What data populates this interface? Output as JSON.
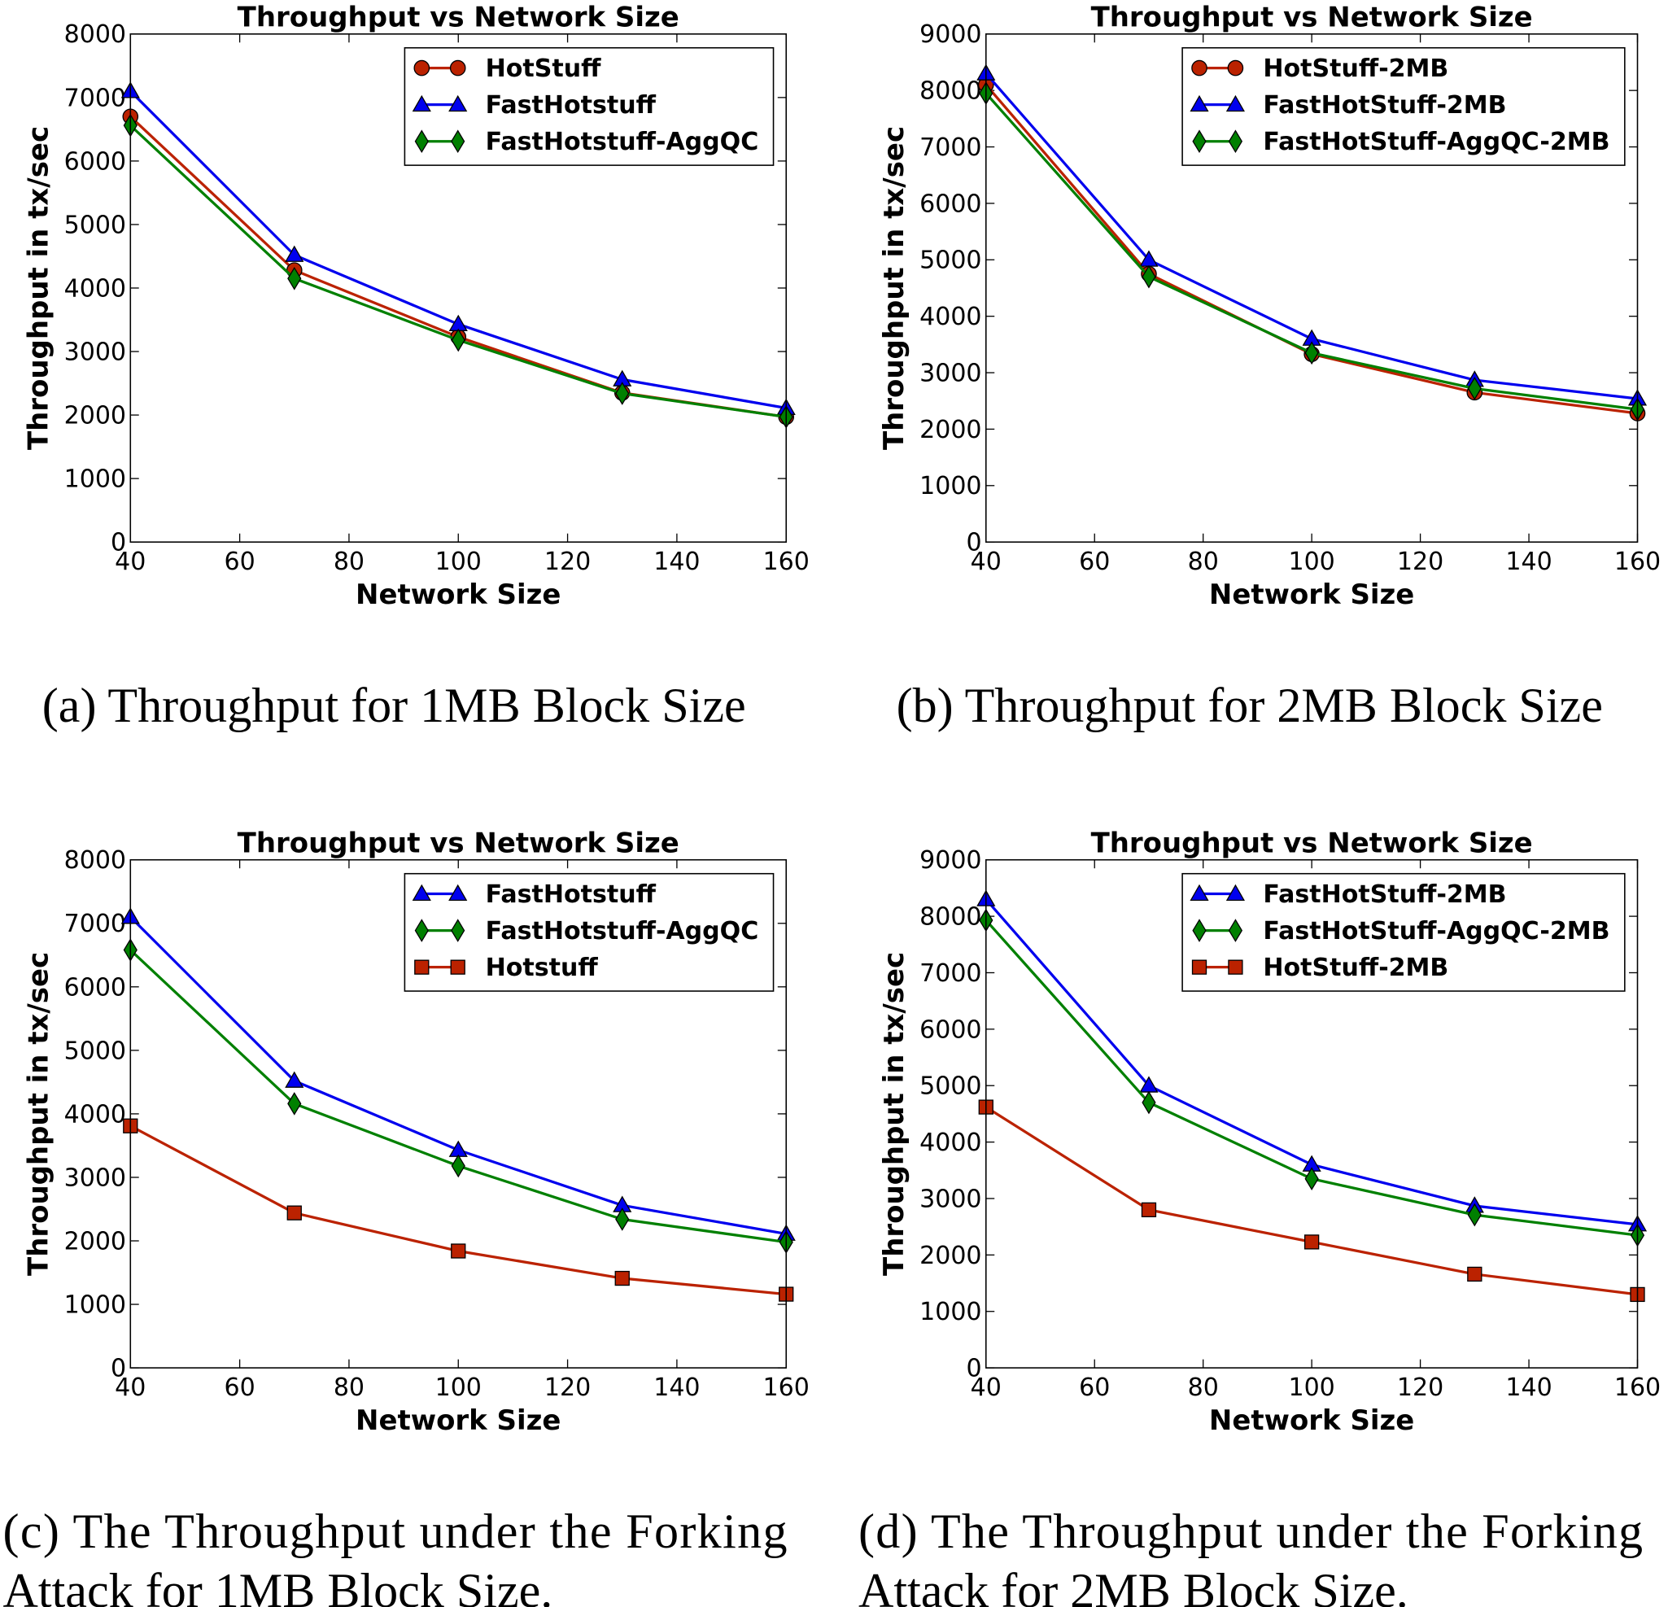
{
  "chart_data": [
    {
      "type": "line",
      "title": "Throughput vs Network Size",
      "x_label": "Network Size",
      "y_label": "Throughput in tx/sec",
      "caption": [
        "(a) Throughput for 1MB Block Size"
      ],
      "x": [
        40,
        70,
        100,
        130,
        160
      ],
      "xlim": [
        40,
        160
      ],
      "xticks": [
        40,
        60,
        80,
        100,
        120,
        140,
        160
      ],
      "ylim": [
        0,
        8000
      ],
      "yticks": [
        0,
        1000,
        2000,
        3000,
        4000,
        5000,
        6000,
        7000,
        8000
      ],
      "legend": "upper right",
      "series": [
        {
          "name": "HotStuff",
          "color": "#bb2200",
          "marker": "circle",
          "values": [
            6700,
            4280,
            3230,
            2350,
            1970
          ]
        },
        {
          "name": "FastHotstuff",
          "color": "#0000ee",
          "marker": "triangle",
          "values": [
            7100,
            4520,
            3430,
            2560,
            2110
          ]
        },
        {
          "name": "FastHotstuff-AggQC",
          "color": "#008000",
          "marker": "diamond",
          "values": [
            6560,
            4150,
            3180,
            2340,
            1970
          ]
        }
      ]
    },
    {
      "type": "line",
      "title": "Throughput vs Network Size",
      "x_label": "Network Size",
      "y_label": "Throughput in tx/sec",
      "caption": [
        "(b) Throughput for 2MB Block Size"
      ],
      "x": [
        40,
        70,
        100,
        130,
        160
      ],
      "xlim": [
        40,
        160
      ],
      "xticks": [
        40,
        60,
        80,
        100,
        120,
        140,
        160
      ],
      "ylim": [
        0,
        9000
      ],
      "yticks": [
        0,
        1000,
        2000,
        3000,
        4000,
        5000,
        6000,
        7000,
        8000,
        9000
      ],
      "legend": "upper right",
      "series": [
        {
          "name": "HotStuff-2MB",
          "color": "#bb2200",
          "marker": "circle",
          "values": [
            8100,
            4750,
            3330,
            2650,
            2280
          ]
        },
        {
          "name": "FastHotStuff-2MB",
          "color": "#0000ee",
          "marker": "triangle",
          "values": [
            8300,
            5000,
            3600,
            2870,
            2540
          ]
        },
        {
          "name": "FastHotStuff-AggQC-2MB",
          "color": "#008000",
          "marker": "diamond",
          "values": [
            7950,
            4700,
            3350,
            2720,
            2350
          ]
        }
      ]
    },
    {
      "type": "line",
      "title": "Throughput vs Network Size",
      "x_label": "Network Size",
      "y_label": "Throughput in tx/sec",
      "caption": [
        "(c) The Throughput under the Forking",
        "Attack for 1MB Block Size."
      ],
      "x": [
        40,
        70,
        100,
        130,
        160
      ],
      "xlim": [
        40,
        160
      ],
      "xticks": [
        40,
        60,
        80,
        100,
        120,
        140,
        160
      ],
      "ylim": [
        0,
        8000
      ],
      "yticks": [
        0,
        1000,
        2000,
        3000,
        4000,
        5000,
        6000,
        7000,
        8000
      ],
      "legend": "upper right",
      "series": [
        {
          "name": "FastHotstuff",
          "color": "#0000ee",
          "marker": "triangle",
          "values": [
            7100,
            4520,
            3430,
            2560,
            2110
          ]
        },
        {
          "name": "FastHotstuff-AggQC",
          "color": "#008000",
          "marker": "diamond",
          "values": [
            6580,
            4160,
            3180,
            2340,
            1980
          ]
        },
        {
          "name": "Hotstuff",
          "color": "#bb2200",
          "marker": "square",
          "values": [
            3810,
            2440,
            1840,
            1410,
            1160
          ]
        }
      ]
    },
    {
      "type": "line",
      "title": "Throughput vs Network Size",
      "x_label": "Network Size",
      "y_label": "Throughput in tx/sec",
      "caption": [
        "(d) The Throughput under the Forking",
        "Attack for 2MB Block Size."
      ],
      "x": [
        40,
        70,
        100,
        130,
        160
      ],
      "xlim": [
        40,
        160
      ],
      "xticks": [
        40,
        60,
        80,
        100,
        120,
        140,
        160
      ],
      "ylim": [
        0,
        9000
      ],
      "yticks": [
        0,
        1000,
        2000,
        3000,
        4000,
        5000,
        6000,
        7000,
        8000,
        9000
      ],
      "legend": "upper right",
      "series": [
        {
          "name": "FastHotStuff-2MB",
          "color": "#0000ee",
          "marker": "triangle",
          "values": [
            8300,
            5000,
            3600,
            2870,
            2540
          ]
        },
        {
          "name": "FastHotStuff-AggQC-2MB",
          "color": "#008000",
          "marker": "diamond",
          "values": [
            7930,
            4700,
            3350,
            2710,
            2350
          ]
        },
        {
          "name": "HotStuff-2MB",
          "color": "#bb2200",
          "marker": "square",
          "values": [
            4620,
            2800,
            2230,
            1660,
            1300
          ]
        }
      ]
    }
  ]
}
